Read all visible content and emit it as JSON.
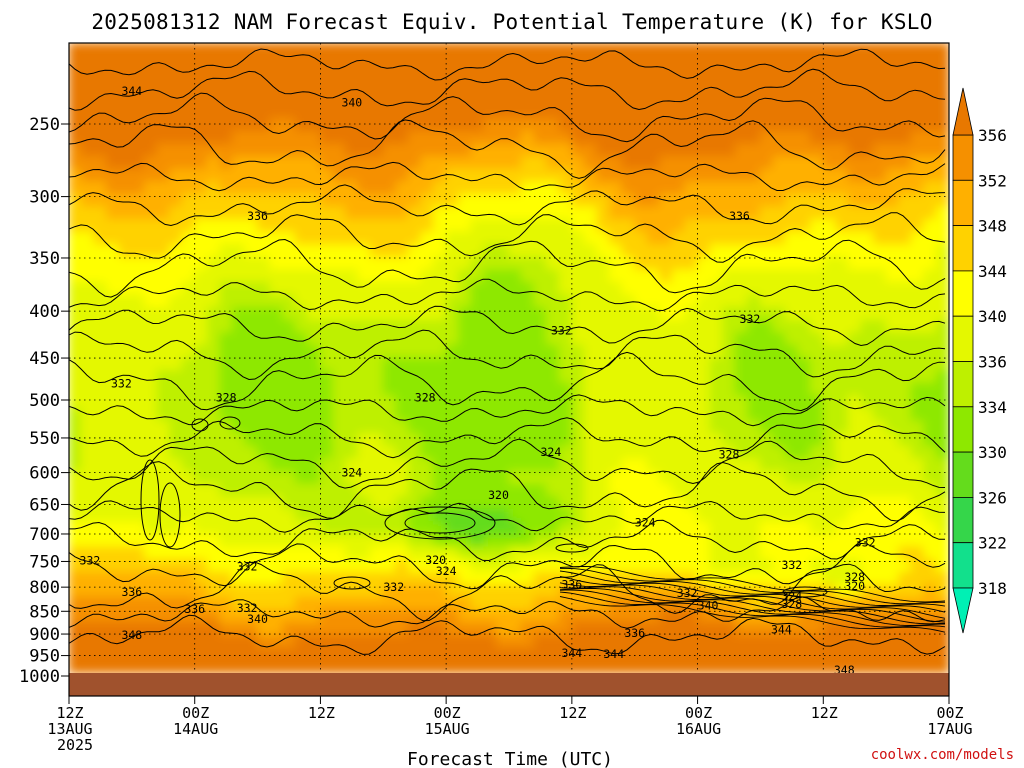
{
  "chart_data": {
    "type": "heatmap",
    "title": "2025081312 NAM Forecast Equiv. Potential Temperature (K) for KSLO",
    "xlabel": "Forecast Time (UTC)",
    "ylabel": "",
    "x_ticks": [
      {
        "hours": 0,
        "line1": "12Z",
        "line2": "13AUG",
        "line3": "2025"
      },
      {
        "hours": 12,
        "line1": "00Z",
        "line2": "14AUG",
        "line3": ""
      },
      {
        "hours": 24,
        "line1": "12Z",
        "line2": "",
        "line3": ""
      },
      {
        "hours": 36,
        "line1": "00Z",
        "line2": "15AUG",
        "line3": ""
      },
      {
        "hours": 48,
        "line1": "12Z",
        "line2": "",
        "line3": ""
      },
      {
        "hours": 60,
        "line1": "00Z",
        "line2": "16AUG",
        "line3": ""
      },
      {
        "hours": 72,
        "line1": "12Z",
        "line2": "",
        "line3": ""
      },
      {
        "hours": 84,
        "line1": "00Z",
        "line2": "17AUG",
        "line3": ""
      }
    ],
    "y_axis": {
      "scale": "log",
      "unit": "hPa",
      "reversed": true,
      "range": [
        1000,
        200
      ],
      "ticks": [
        250,
        300,
        350,
        400,
        450,
        500,
        550,
        600,
        650,
        700,
        750,
        800,
        850,
        900,
        950,
        1000
      ]
    },
    "colorbar": {
      "levels": [
        318,
        322,
        326,
        330,
        334,
        336,
        340,
        344,
        348,
        352,
        356
      ],
      "colors": [
        "#00f0b4",
        "#12e08c",
        "#35d64a",
        "#64dc1c",
        "#8ee800",
        "#bef000",
        "#e4f800",
        "#ffff00",
        "#ffd200",
        "#ffb000",
        "#f59000",
        "#e87800"
      ],
      "extend": "both"
    },
    "ground_color": "#a0522d",
    "grid": "dotted",
    "contour_interval": 4,
    "contour_labels": [
      {
        "t": 6,
        "p": 230,
        "v": "344"
      },
      {
        "t": 27,
        "p": 237,
        "v": "340"
      },
      {
        "t": 18,
        "p": 315,
        "v": "336"
      },
      {
        "t": 64,
        "p": 315,
        "v": "336"
      },
      {
        "t": 47,
        "p": 420,
        "v": "332"
      },
      {
        "t": 65,
        "p": 408,
        "v": "332"
      },
      {
        "t": 5,
        "p": 480,
        "v": "332"
      },
      {
        "t": 15,
        "p": 497,
        "v": "328"
      },
      {
        "t": 34,
        "p": 497,
        "v": "328"
      },
      {
        "t": 63,
        "p": 573,
        "v": "328"
      },
      {
        "t": 46,
        "p": 570,
        "v": "324"
      },
      {
        "t": 27,
        "p": 600,
        "v": "324"
      },
      {
        "t": 41,
        "p": 635,
        "v": "320"
      },
      {
        "t": 55,
        "p": 680,
        "v": "324"
      },
      {
        "t": 76,
        "p": 715,
        "v": "332"
      },
      {
        "t": 35,
        "p": 747,
        "v": "320"
      },
      {
        "t": 36,
        "p": 768,
        "v": "324"
      },
      {
        "t": 17,
        "p": 760,
        "v": "332"
      },
      {
        "t": 2,
        "p": 748,
        "v": "332"
      },
      {
        "t": 31,
        "p": 800,
        "v": "332"
      },
      {
        "t": 48,
        "p": 795,
        "v": "336"
      },
      {
        "t": 69,
        "p": 757,
        "v": "332"
      },
      {
        "t": 75,
        "p": 780,
        "v": "328"
      },
      {
        "t": 75,
        "p": 798,
        "v": "320"
      },
      {
        "t": 6,
        "p": 810,
        "v": "336"
      },
      {
        "t": 12,
        "p": 845,
        "v": "336"
      },
      {
        "t": 17,
        "p": 843,
        "v": "332"
      },
      {
        "t": 18,
        "p": 867,
        "v": "340"
      },
      {
        "t": 59,
        "p": 812,
        "v": "332"
      },
      {
        "t": 61,
        "p": 838,
        "v": "340"
      },
      {
        "t": 69,
        "p": 818,
        "v": "324"
      },
      {
        "t": 69,
        "p": 835,
        "v": "328"
      },
      {
        "t": 54,
        "p": 898,
        "v": "336"
      },
      {
        "t": 6,
        "p": 902,
        "v": "348"
      },
      {
        "t": 68,
        "p": 890,
        "v": "344"
      },
      {
        "t": 48,
        "p": 944,
        "v": "344"
      },
      {
        "t": 52,
        "p": 946,
        "v": "344"
      },
      {
        "t": 74,
        "p": 985,
        "v": "348"
      }
    ]
  },
  "credit": "coolwx.com/models"
}
